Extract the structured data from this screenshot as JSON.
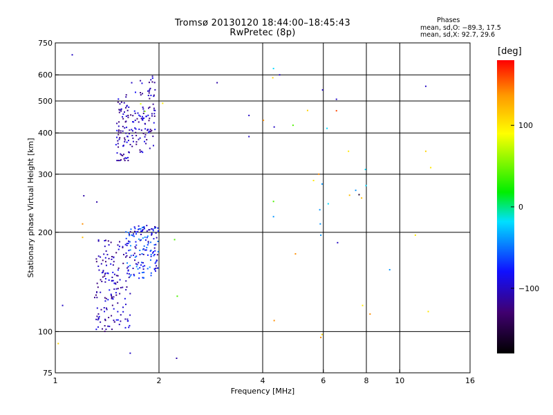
{
  "header": {
    "title": "Tromsø 20130120 18:44:00–18:45:43",
    "subtitle": "RwPretec (8p)",
    "stats_title": "Phases",
    "stats_o": "mean, sd,O: −89.3, 17.5",
    "stats_x": "mean, sd,X:  92.7, 29.6"
  },
  "colorbar": {
    "unit_label": "[deg]",
    "min": -180,
    "max": 180,
    "ticks": [
      "100",
      "0",
      "−100"
    ],
    "tick_values": [
      100,
      0,
      -100
    ]
  },
  "chart_data": {
    "type": "scatter",
    "title": "Tromsø 20130120 18:44:00–18:45:43",
    "subtitle": "RwPretec (8p)",
    "xlabel": "Frequency [MHz]",
    "ylabel": "Stationary phase Virtual Height [km]",
    "x_scale": "log",
    "y_scale": "log",
    "xlim": [
      1,
      16
    ],
    "ylim": [
      75,
      750
    ],
    "x_ticks": [
      1,
      2,
      4,
      6,
      8,
      10,
      16
    ],
    "x_tick_labels": [
      "1",
      "2",
      "4",
      "6",
      "8",
      "10",
      "16"
    ],
    "y_ticks": [
      75,
      100,
      200,
      300,
      400,
      500,
      600,
      750
    ],
    "y_tick_labels": [
      "75",
      "100",
      "200",
      "300",
      "400",
      "500",
      "600",
      "750"
    ],
    "grid_x": [
      2,
      4,
      6,
      8,
      10
    ],
    "grid_y": [
      100,
      200,
      300,
      400,
      500,
      600
    ],
    "color_axis": "phase [deg]",
    "clusters": [
      {
        "x_range": [
          1.5,
          1.95
        ],
        "y_range": [
          330,
          600
        ],
        "phase_range": [
          -130,
          -80
        ],
        "count": 180
      },
      {
        "x_range": [
          1.3,
          1.65
        ],
        "y_range": [
          100,
          190
        ],
        "phase_range": [
          -130,
          -80
        ],
        "count": 160
      },
      {
        "x_range": [
          1.6,
          2.0
        ],
        "y_range": [
          145,
          210
        ],
        "phase_range": [
          -120,
          -40
        ],
        "count": 150
      }
    ],
    "points": [
      {
        "x": 1.12,
        "y": 690,
        "phase": -100
      },
      {
        "x": 1.21,
        "y": 258,
        "phase": -110
      },
      {
        "x": 1.2,
        "y": 212,
        "phase": 140
      },
      {
        "x": 1.2,
        "y": 193,
        "phase": 120
      },
      {
        "x": 1.32,
        "y": 247,
        "phase": -110
      },
      {
        "x": 1.05,
        "y": 120,
        "phase": -100
      },
      {
        "x": 1.02,
        "y": 92,
        "phase": 110
      },
      {
        "x": 1.62,
        "y": 109,
        "phase": -100
      },
      {
        "x": 1.65,
        "y": 86,
        "phase": -100
      },
      {
        "x": 1.77,
        "y": 490,
        "phase": 80
      },
      {
        "x": 1.82,
        "y": 465,
        "phase": 60
      },
      {
        "x": 2.05,
        "y": 492,
        "phase": 100
      },
      {
        "x": 2.22,
        "y": 190,
        "phase": 40
      },
      {
        "x": 2.26,
        "y": 128,
        "phase": 40
      },
      {
        "x": 2.25,
        "y": 83,
        "phase": -110
      },
      {
        "x": 2.95,
        "y": 568,
        "phase": -110
      },
      {
        "x": 3.65,
        "y": 452,
        "phase": -100
      },
      {
        "x": 3.65,
        "y": 390,
        "phase": -100
      },
      {
        "x": 4.02,
        "y": 437,
        "phase": 140
      },
      {
        "x": 4.28,
        "y": 588,
        "phase": 110
      },
      {
        "x": 4.3,
        "y": 627,
        "phase": -20
      },
      {
        "x": 4.32,
        "y": 417,
        "phase": -100
      },
      {
        "x": 4.3,
        "y": 248,
        "phase": 40
      },
      {
        "x": 4.3,
        "y": 223,
        "phase": -40
      },
      {
        "x": 4.32,
        "y": 108,
        "phase": 140
      },
      {
        "x": 4.48,
        "y": 600,
        "phase": -100
      },
      {
        "x": 4.9,
        "y": 422,
        "phase": 40
      },
      {
        "x": 4.98,
        "y": 172,
        "phase": 140
      },
      {
        "x": 5.4,
        "y": 468,
        "phase": 110
      },
      {
        "x": 5.62,
        "y": 287,
        "phase": 100
      },
      {
        "x": 5.82,
        "y": 300,
        "phase": 140
      },
      {
        "x": 5.86,
        "y": 234,
        "phase": -40
      },
      {
        "x": 5.88,
        "y": 212,
        "phase": -40
      },
      {
        "x": 5.9,
        "y": 196,
        "phase": -40
      },
      {
        "x": 5.9,
        "y": 96,
        "phase": 140
      },
      {
        "x": 5.95,
        "y": 98,
        "phase": 110
      },
      {
        "x": 5.97,
        "y": 540,
        "phase": -100
      },
      {
        "x": 5.95,
        "y": 280,
        "phase": -40
      },
      {
        "x": 6.15,
        "y": 413,
        "phase": -20
      },
      {
        "x": 6.2,
        "y": 244,
        "phase": -20
      },
      {
        "x": 6.55,
        "y": 506,
        "phase": -100
      },
      {
        "x": 6.55,
        "y": 467,
        "phase": 160
      },
      {
        "x": 6.6,
        "y": 186,
        "phase": -100
      },
      {
        "x": 7.1,
        "y": 352,
        "phase": 100
      },
      {
        "x": 7.15,
        "y": 259,
        "phase": 120
      },
      {
        "x": 7.45,
        "y": 268,
        "phase": -40
      },
      {
        "x": 7.62,
        "y": 260,
        "phase": -160
      },
      {
        "x": 7.75,
        "y": 254,
        "phase": 120
      },
      {
        "x": 7.8,
        "y": 120,
        "phase": 100
      },
      {
        "x": 7.95,
        "y": 310,
        "phase": -20
      },
      {
        "x": 7.98,
        "y": 277,
        "phase": -20
      },
      {
        "x": 8.2,
        "y": 113,
        "phase": 140
      },
      {
        "x": 9.35,
        "y": 154,
        "phase": -40
      },
      {
        "x": 11.1,
        "y": 196,
        "phase": 100
      },
      {
        "x": 11.9,
        "y": 554,
        "phase": -100
      },
      {
        "x": 11.9,
        "y": 352,
        "phase": 110
      },
      {
        "x": 12.3,
        "y": 314,
        "phase": 100
      },
      {
        "x": 12.1,
        "y": 115,
        "phase": 100
      }
    ]
  }
}
